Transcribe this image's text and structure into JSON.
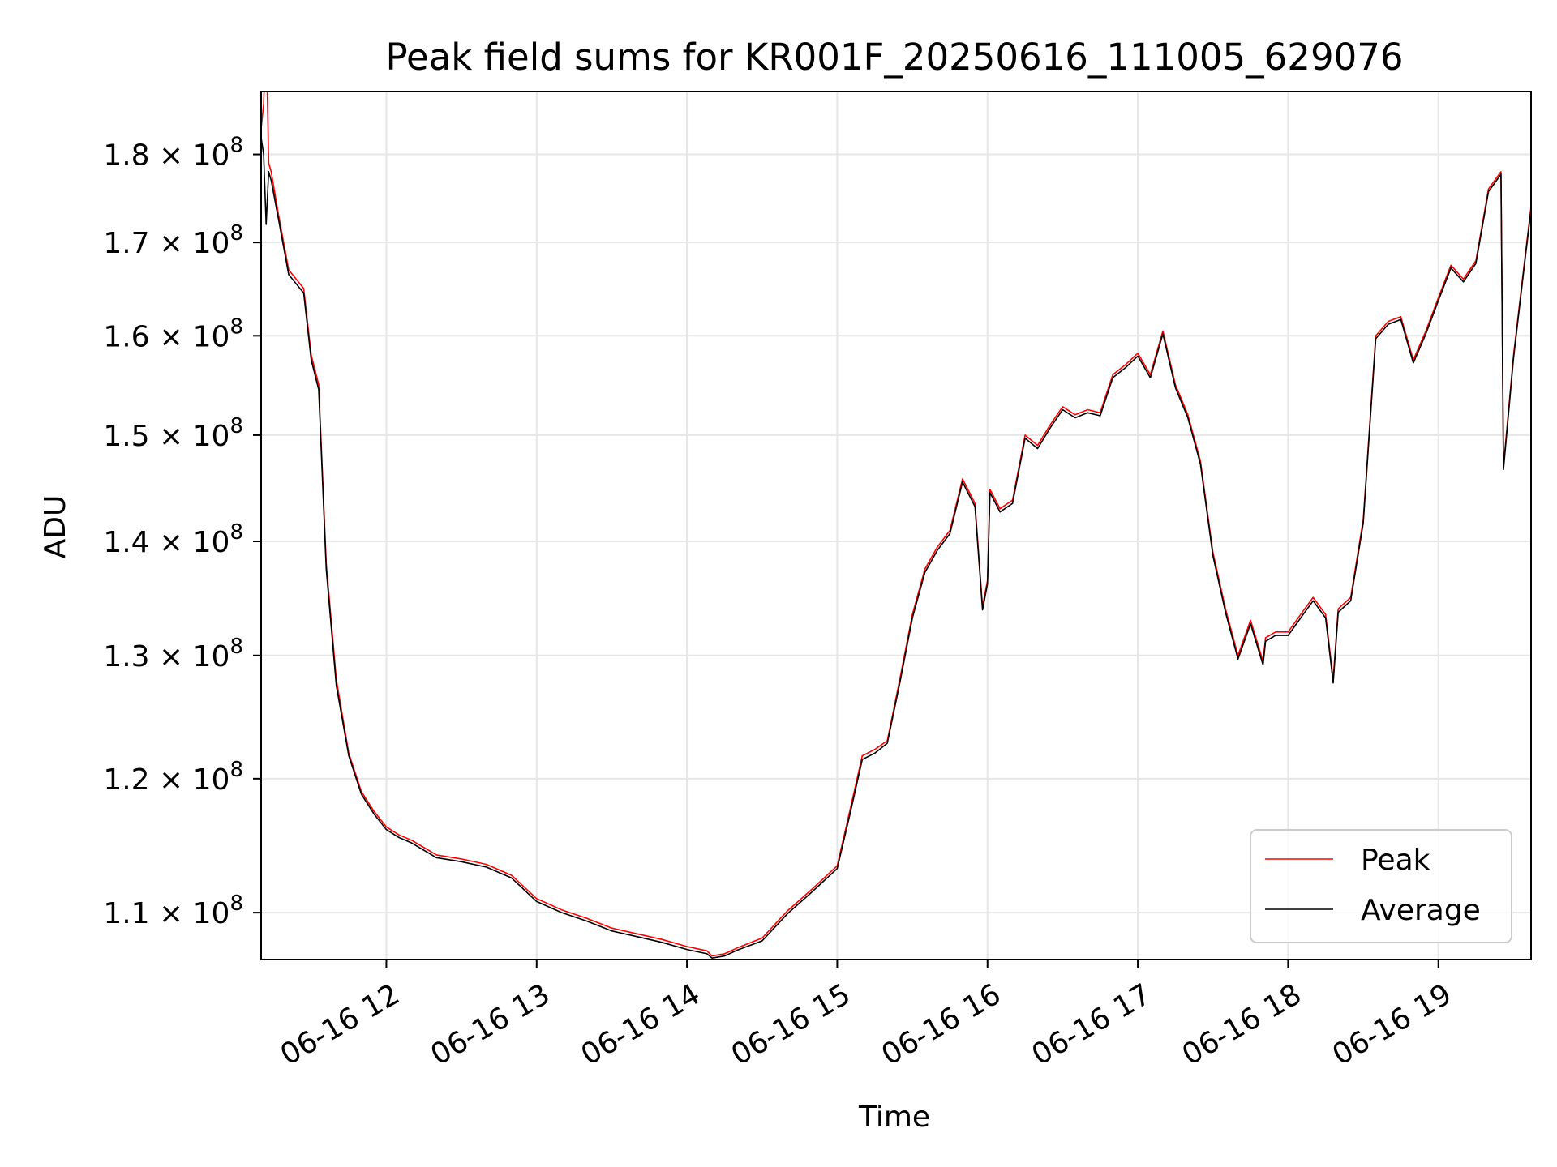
{
  "chart_data": {
    "type": "line",
    "title": "Peak field sums for KR001F_20250616_111005_629076",
    "xlabel": "Time",
    "ylabel": "ADU",
    "yscale": "log",
    "xlim": [
      "06-16 11:10",
      "06-16 19:37"
    ],
    "ylim": [
      106700000,
      187500000
    ],
    "grid": true,
    "legend_position": "lower right",
    "x_ticks": [
      "06-16 12",
      "06-16 13",
      "06-16 14",
      "06-16 15",
      "06-16 16",
      "06-16 17",
      "06-16 18",
      "06-16 19"
    ],
    "y_ticks": [
      {
        "value": 110000000,
        "mantissa": "1.1",
        "base": "10",
        "exp": "8"
      },
      {
        "value": 120000000,
        "mantissa": "1.2",
        "base": "10",
        "exp": "8"
      },
      {
        "value": 130000000,
        "mantissa": "1.3",
        "base": "10",
        "exp": "8"
      },
      {
        "value": 140000000,
        "mantissa": "1.4",
        "base": "10",
        "exp": "8"
      },
      {
        "value": 150000000,
        "mantissa": "1.5",
        "base": "10",
        "exp": "8"
      },
      {
        "value": 160000000,
        "mantissa": "1.6",
        "base": "10",
        "exp": "8"
      },
      {
        "value": 170000000,
        "mantissa": "1.7",
        "base": "10",
        "exp": "8"
      },
      {
        "value": 180000000,
        "mantissa": "1.8",
        "base": "10",
        "exp": "8"
      }
    ],
    "x": [
      "06-16 11:10",
      "06-16 11:11",
      "06-16 11:12",
      "06-16 11:13",
      "06-16 11:14",
      "06-16 11:17",
      "06-16 11:21",
      "06-16 11:24",
      "06-16 11:27",
      "06-16 11:30",
      "06-16 11:33",
      "06-16 11:36",
      "06-16 11:40",
      "06-16 11:45",
      "06-16 11:50",
      "06-16 11:55",
      "06-16 12:00",
      "06-16 12:05",
      "06-16 12:10",
      "06-16 12:20",
      "06-16 12:30",
      "06-16 12:40",
      "06-16 12:50",
      "06-16 13:00",
      "06-16 13:10",
      "06-16 13:20",
      "06-16 13:30",
      "06-16 13:40",
      "06-16 13:50",
      "06-16 14:00",
      "06-16 14:08",
      "06-16 14:10",
      "06-16 14:15",
      "06-16 14:20",
      "06-16 14:30",
      "06-16 14:40",
      "06-16 14:50",
      "06-16 15:00",
      "06-16 15:05",
      "06-16 15:10",
      "06-16 15:15",
      "06-16 15:20",
      "06-16 15:25",
      "06-16 15:30",
      "06-16 15:35",
      "06-16 15:40",
      "06-16 15:45",
      "06-16 15:50",
      "06-16 15:55",
      "06-16 15:58",
      "06-16 16:00",
      "06-16 16:01",
      "06-16 16:05",
      "06-16 16:10",
      "06-16 16:15",
      "06-16 16:20",
      "06-16 16:25",
      "06-16 16:30",
      "06-16 16:35",
      "06-16 16:40",
      "06-16 16:45",
      "06-16 16:50",
      "06-16 16:55",
      "06-16 17:00",
      "06-16 17:05",
      "06-16 17:10",
      "06-16 17:15",
      "06-16 17:20",
      "06-16 17:25",
      "06-16 17:30",
      "06-16 17:35",
      "06-16 17:40",
      "06-16 17:45",
      "06-16 17:50",
      "06-16 17:51",
      "06-16 17:55",
      "06-16 18:00",
      "06-16 18:05",
      "06-16 18:10",
      "06-16 18:15",
      "06-16 18:18",
      "06-16 18:20",
      "06-16 18:25",
      "06-16 18:30",
      "06-16 18:35",
      "06-16 18:40",
      "06-16 18:45",
      "06-16 18:50",
      "06-16 18:55",
      "06-16 19:00",
      "06-16 19:05",
      "06-16 19:10",
      "06-16 19:15",
      "06-16 19:20",
      "06-16 19:25",
      "06-16 19:26",
      "06-16 19:30",
      "06-16 19:34",
      "06-16 19:37"
    ],
    "series": [
      {
        "name": "Peak",
        "color": "#ff0000",
        "values": [
          183000000,
          186000000,
          195000000,
          179000000,
          178000000,
          173000000,
          167000000,
          166000000,
          165000000,
          158000000,
          155000000,
          138000000,
          128000000,
          122000000,
          119000000,
          117500000,
          116300000,
          115700000,
          115300000,
          114200000,
          113900000,
          113500000,
          112700000,
          111000000,
          110200000,
          109600000,
          108900000,
          108500000,
          108100000,
          107600000,
          107300000,
          106950000,
          107100000,
          107500000,
          108200000,
          110100000,
          111700000,
          113400000,
          117500000,
          121800000,
          122300000,
          123000000,
          128000000,
          133500000,
          137500000,
          139500000,
          141000000,
          145800000,
          143500000,
          134200000,
          136500000,
          144800000,
          143000000,
          143800000,
          150000000,
          149000000,
          151000000,
          152800000,
          152000000,
          152500000,
          152200000,
          156000000,
          157000000,
          158200000,
          156000000,
          160500000,
          155000000,
          152000000,
          147500000,
          139000000,
          134000000,
          130000000,
          133000000,
          129500000,
          131500000,
          132000000,
          132000000,
          133500000,
          135000000,
          133500000,
          128000000,
          134000000,
          135000000,
          142000000,
          160000000,
          161500000,
          162000000,
          157500000,
          160500000,
          164000000,
          167500000,
          166000000,
          168000000,
          176000000,
          178000000,
          147000000,
          158000000,
          167000000,
          174000000
        ]
      },
      {
        "name": "Average",
        "color": "#000000",
        "values": [
          182000000,
          180000000,
          172000000,
          178000000,
          177000000,
          172500000,
          166500000,
          165500000,
          164500000,
          157500000,
          154500000,
          137500000,
          127500000,
          121800000,
          118800000,
          117300000,
          116100000,
          115500000,
          115100000,
          114000000,
          113700000,
          113300000,
          112500000,
          110800000,
          110000000,
          109400000,
          108700000,
          108300000,
          107900000,
          107400000,
          107100000,
          106800000,
          106950000,
          107350000,
          108000000,
          109900000,
          111500000,
          113200000,
          117200000,
          121500000,
          122000000,
          122800000,
          127700000,
          133200000,
          137200000,
          139200000,
          140700000,
          145500000,
          143200000,
          133900000,
          136200000,
          144500000,
          142700000,
          143500000,
          149700000,
          148700000,
          150700000,
          152500000,
          151700000,
          152200000,
          151900000,
          155700000,
          156700000,
          157900000,
          155700000,
          160200000,
          154700000,
          151700000,
          147200000,
          138700000,
          133700000,
          129700000,
          132700000,
          129200000,
          131200000,
          131700000,
          131700000,
          133200000,
          134700000,
          133200000,
          127700000,
          133700000,
          134700000,
          141700000,
          159700000,
          161200000,
          161700000,
          157200000,
          160200000,
          163700000,
          167200000,
          165700000,
          167700000,
          175700000,
          177700000,
          146700000,
          157700000,
          166700000,
          173700000
        ]
      }
    ]
  }
}
